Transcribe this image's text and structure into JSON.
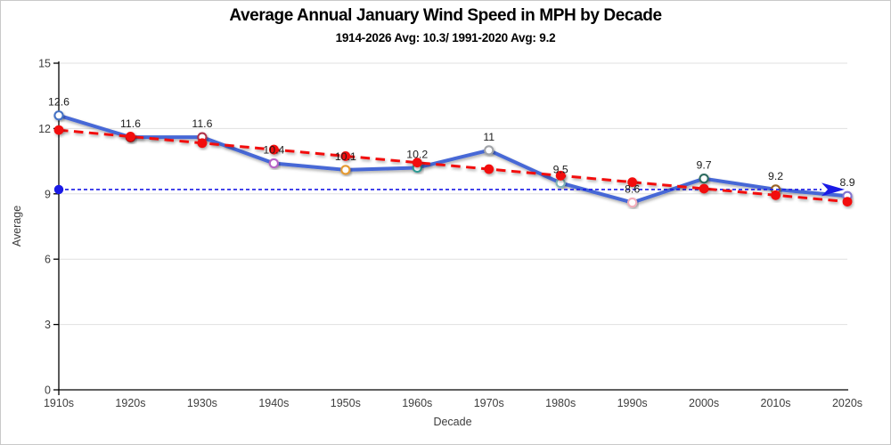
{
  "header": {
    "title": "Average Annual January Wind Speed in MPH by Decade",
    "subtitle": "1914-2026 Avg: 10.3/ 1991-2020 Avg: 9.2"
  },
  "chart_data": {
    "type": "line",
    "title": "Average Annual January Wind Speed in MPH by Decade",
    "subtitle": "1914-2026 Avg: 10.3/ 1991-2020 Avg: 9.2",
    "xlabel": "Decade",
    "ylabel": "Average",
    "ylim": [
      0,
      15
    ],
    "yticks": [
      0,
      3,
      6,
      9,
      12,
      15
    ],
    "grid": true,
    "legend": "none",
    "categories": [
      "1910s",
      "1920s",
      "1930s",
      "1940s",
      "1950s",
      "1960s",
      "1970s",
      "1980s",
      "1990s",
      "2000s",
      "2010s",
      "2020s"
    ],
    "series": [
      {
        "name": "decade-average-mph",
        "type": "line-with-markers",
        "color": "#4668d6",
        "values": [
          12.6,
          11.6,
          11.6,
          10.4,
          10.1,
          10.2,
          11,
          9.5,
          8.6,
          9.7,
          9.2,
          8.9
        ],
        "data_labels": [
          "12.6",
          "11.6",
          "11.6",
          "10.4",
          "10.1",
          "10.2",
          "11",
          "9.5",
          "8.6",
          "9.7",
          "9.2",
          "8.9"
        ],
        "marker_colors": [
          "#4472C4",
          "#C00000",
          "#B03049",
          "#B763C6",
          "#E59A31",
          "#2E9B94",
          "#A0A3A8",
          "#7FB4B8",
          "#F2AEBB",
          "#2F6C60",
          "#9A6327",
          "#8274D2"
        ]
      },
      {
        "name": "linear-trendline",
        "type": "trend-dashed-with-dots",
        "color": "#f20d0d",
        "trend_start": 11.93,
        "trend_end": 8.64
      },
      {
        "name": "reference-1991-2020-average",
        "type": "horizontal-dashed-arrow",
        "color": "#1a1ae6",
        "value": 9.2
      }
    ],
    "axis_color": "#000000",
    "gridline_color": "#e0e0e0",
    "tick_label_color": "#3d3d3d",
    "data_label_color": "#1c1c1c"
  }
}
